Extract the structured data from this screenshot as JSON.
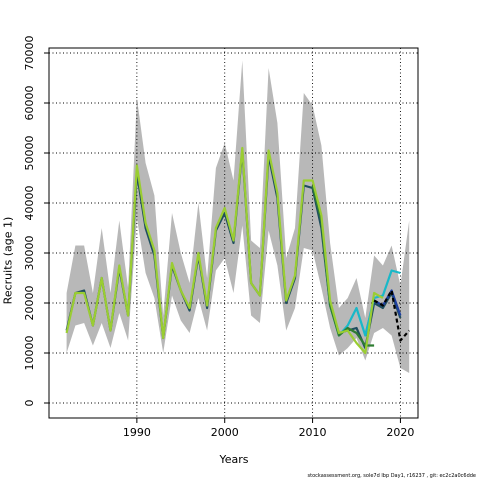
{
  "chart_data": {
    "type": "line",
    "title": "",
    "xlabel": "Years",
    "ylabel": "Recruits (age 1)",
    "xlim": [
      1980,
      2022
    ],
    "ylim": [
      -3000,
      71000
    ],
    "x_ticks": [
      1990,
      2000,
      2010,
      2020
    ],
    "y_ticks": [
      0,
      10000,
      20000,
      30000,
      40000,
      50000,
      60000,
      70000
    ],
    "grid": true,
    "legend": "none",
    "footer": "stockassessment.org, sole7d lbp Day1, r16237 , git: ec2c2a0c6dde",
    "band": {
      "x": [
        1982,
        1983,
        1984,
        1985,
        1986,
        1987,
        1988,
        1989,
        1990,
        1991,
        1992,
        1993,
        1994,
        1995,
        1996,
        1997,
        1998,
        1999,
        2000,
        2001,
        2002,
        2003,
        2004,
        2005,
        2006,
        2007,
        2008,
        2009,
        2010,
        2011,
        2012,
        2013,
        2014,
        2015,
        2016,
        2017,
        2018,
        2019,
        2020,
        2021
      ],
      "lower": [
        10000,
        15500,
        16000,
        11500,
        16000,
        11000,
        18000,
        12500,
        37000,
        26000,
        21000,
        10000,
        21500,
        16500,
        14000,
        21000,
        14500,
        26500,
        29000,
        22000,
        35500,
        17500,
        16000,
        34500,
        27500,
        14500,
        19000,
        31000,
        30500,
        23000,
        15000,
        9500,
        11000,
        13000,
        8500,
        14000,
        15000,
        13500,
        7000,
        6000
      ],
      "upper": [
        22000,
        31500,
        31500,
        22000,
        35000,
        22000,
        36500,
        23000,
        61000,
        48000,
        41500,
        17500,
        38000,
        30000,
        24000,
        40000,
        25000,
        47000,
        52000,
        44500,
        68500,
        32500,
        31000,
        67000,
        56000,
        29000,
        35000,
        62000,
        59500,
        51500,
        32000,
        19000,
        21000,
        25000,
        17000,
        29500,
        27500,
        31500,
        23500,
        36500
      ]
    },
    "series": [
      {
        "color": "#1f4e5f",
        "x": [
          1982,
          1983,
          1984,
          1985,
          1986,
          1987,
          1988,
          1989,
          1990,
          1991,
          1992,
          1993,
          1994,
          1995,
          1996,
          1997,
          1998,
          1999,
          2000,
          2001,
          2002,
          2003,
          2004,
          2005,
          2006,
          2007,
          2008,
          2009,
          2010,
          2011,
          2012,
          2013,
          2014,
          2015,
          2016,
          2017,
          2018,
          2019,
          2020
        ],
        "y": [
          14500,
          22000,
          22500,
          15500,
          25000,
          14500,
          27000,
          17500,
          46000,
          35000,
          29500,
          13000,
          27500,
          22500,
          18500,
          29500,
          19000,
          34500,
          38000,
          32000,
          50500,
          24000,
          21500,
          49500,
          41000,
          20000,
          25000,
          43500,
          43000,
          35000,
          19500,
          14000,
          14500,
          15000,
          11000,
          20000,
          19000,
          22000,
          17000
        ]
      },
      {
        "color": "#1e3fa0",
        "x": [
          2016,
          2017,
          2018,
          2019,
          2020
        ],
        "y": [
          13500,
          20500,
          19500,
          22500,
          17500
        ]
      },
      {
        "color": "#19b8c8",
        "x": [
          2011,
          2012,
          2013,
          2014,
          2015,
          2016,
          2017,
          2018,
          2019,
          2020
        ],
        "y": [
          37000,
          19500,
          13500,
          15500,
          19000,
          13500,
          21000,
          21500,
          26500,
          26000
        ]
      },
      {
        "color": "#2e7d32",
        "x": [
          2010,
          2011,
          2012,
          2013,
          2014,
          2015,
          2016,
          2017
        ],
        "y": [
          43500,
          36500,
          19500,
          13500,
          15000,
          14000,
          11500,
          11500
        ]
      },
      {
        "color": "#9acd32",
        "x": [
          1982,
          1983,
          1984,
          1985,
          1986,
          1987,
          1988,
          1989,
          1990,
          1991,
          1992,
          1993,
          1994,
          1995,
          1996,
          1997,
          1998,
          1999,
          2000,
          2001,
          2002,
          2003,
          2004,
          2005,
          2006,
          2007,
          2008,
          2009,
          2010,
          2011,
          2012,
          2013,
          2014,
          2015,
          2016,
          2017,
          2018
        ],
        "y": [
          14000,
          22000,
          22000,
          15500,
          25000,
          14500,
          27500,
          17500,
          47500,
          36000,
          30500,
          13000,
          28000,
          22500,
          19000,
          30000,
          19500,
          35000,
          39000,
          32500,
          51000,
          24000,
          21500,
          50500,
          42000,
          20500,
          25500,
          44500,
          44500,
          37500,
          20500,
          14000,
          14500,
          12000,
          10000,
          22000,
          21000
        ]
      },
      {
        "color": "#000000",
        "dashed": true,
        "x": [
          2017,
          2018,
          2019,
          2020,
          2021
        ],
        "y": [
          20500,
          19500,
          22500,
          12500,
          14500
        ]
      }
    ]
  }
}
